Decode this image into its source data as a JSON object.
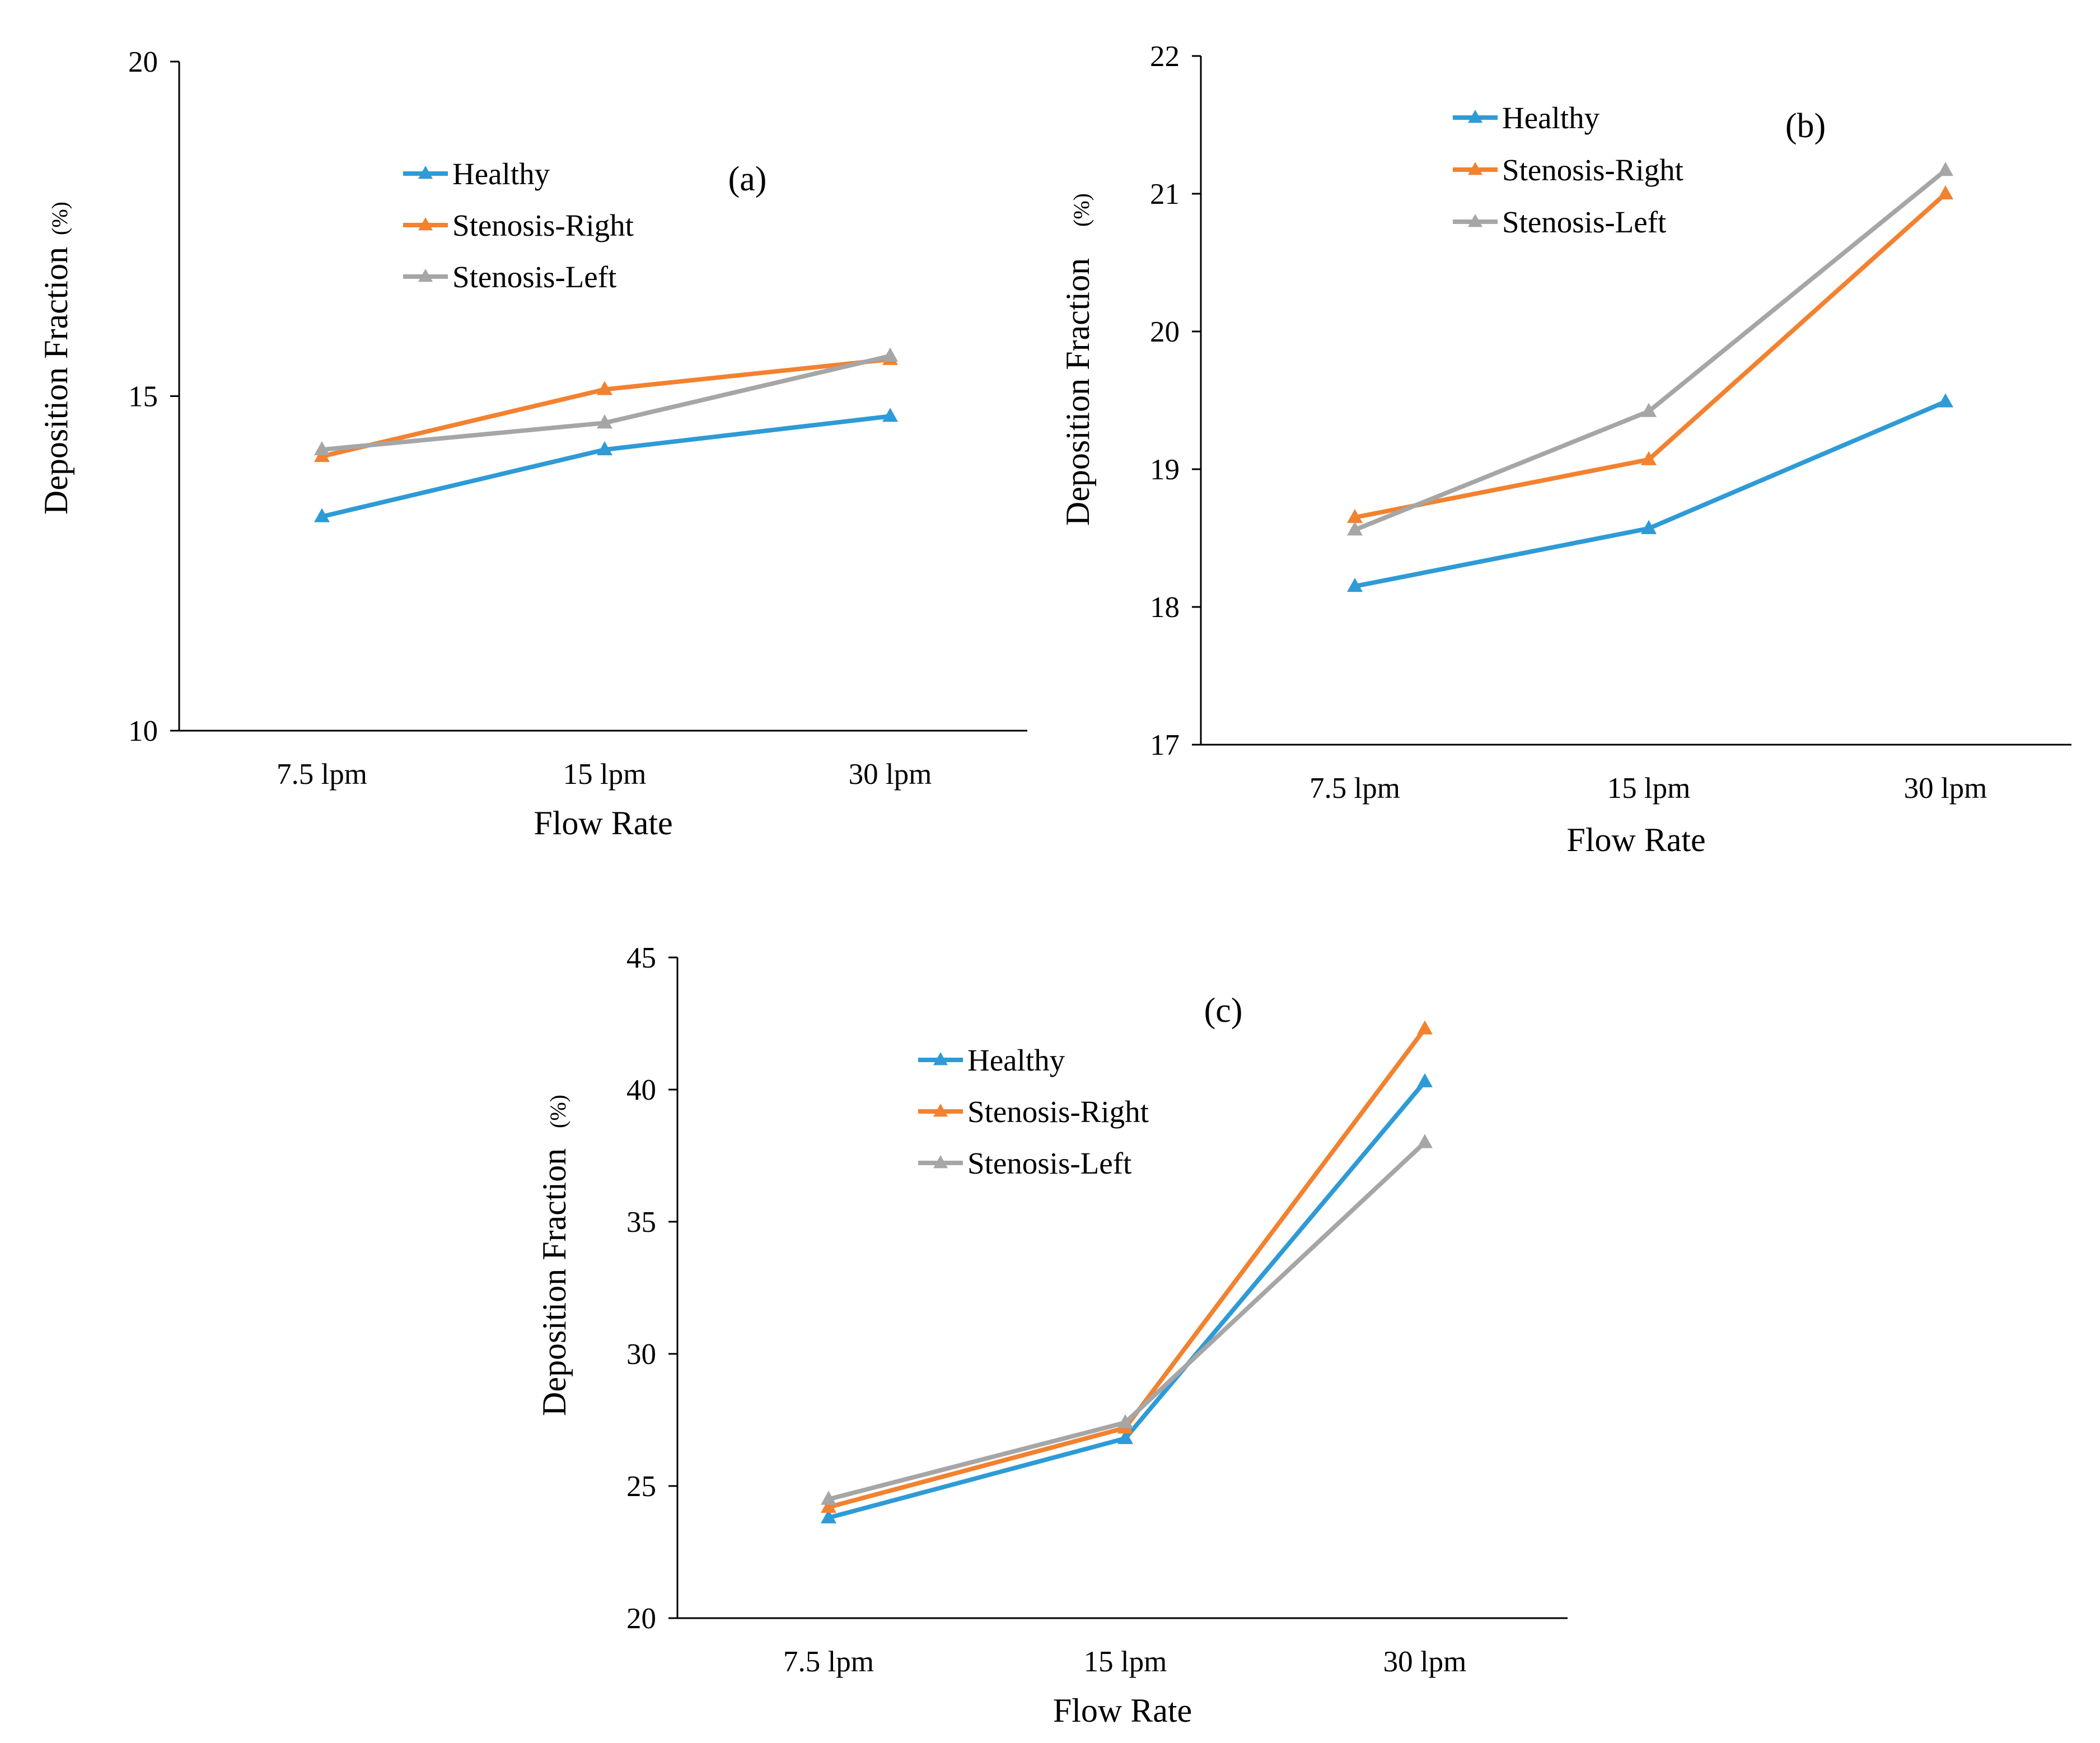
{
  "chart_data": [
    {
      "type": "line",
      "panel_label": "(a)",
      "categories": [
        "7.5 lpm",
        "15 lpm",
        "30 lpm"
      ],
      "xlabel": "Flow Rate",
      "ylabel": "Deposition Fraction",
      "yunit": "(%)",
      "ylim": [
        10,
        20
      ],
      "yticks": [
        10,
        15,
        20
      ],
      "legend_position": "top-center",
      "series": [
        {
          "name": "Healthy",
          "color": "#2E9BD6",
          "values": [
            13.2,
            14.2,
            14.7
          ]
        },
        {
          "name": "Stenosis-Right",
          "color": "#F28130",
          "values": [
            14.1,
            15.1,
            15.55
          ]
        },
        {
          "name": "Stenosis-Left",
          "color": "#A6A6A6",
          "values": [
            14.2,
            14.6,
            15.6
          ]
        }
      ]
    },
    {
      "type": "line",
      "panel_label": "(b)",
      "categories": [
        "7.5 lpm",
        "15 lpm",
        "30 lpm"
      ],
      "xlabel": "Flow Rate",
      "ylabel": "Deposition Fraction",
      "yunit": "(%)",
      "ylim": [
        17,
        22
      ],
      "yticks": [
        17,
        18,
        19,
        20,
        21,
        22
      ],
      "legend_position": "top-left",
      "series": [
        {
          "name": "Healthy",
          "color": "#2E9BD6",
          "values": [
            18.15,
            18.57,
            19.49
          ]
        },
        {
          "name": "Stenosis-Right",
          "color": "#F28130",
          "values": [
            18.65,
            19.07,
            21.0
          ]
        },
        {
          "name": "Stenosis-Left",
          "color": "#A6A6A6",
          "values": [
            18.56,
            19.42,
            21.17
          ]
        }
      ]
    },
    {
      "type": "line",
      "panel_label": "(c)",
      "categories": [
        "7.5 lpm",
        "15 lpm",
        "30 lpm"
      ],
      "xlabel": "Flow Rate",
      "ylabel": "Deposition Fraction",
      "yunit": "(%)",
      "ylim": [
        20,
        45
      ],
      "yticks": [
        20,
        25,
        30,
        35,
        40,
        45
      ],
      "legend_position": "top-center",
      "series": [
        {
          "name": "Healthy",
          "color": "#2E9BD6",
          "values": [
            23.8,
            26.8,
            40.3
          ]
        },
        {
          "name": "Stenosis-Right",
          "color": "#F28130",
          "values": [
            24.2,
            27.2,
            42.3
          ]
        },
        {
          "name": "Stenosis-Left",
          "color": "#A6A6A6",
          "values": [
            24.5,
            27.4,
            38.0
          ]
        }
      ]
    }
  ]
}
